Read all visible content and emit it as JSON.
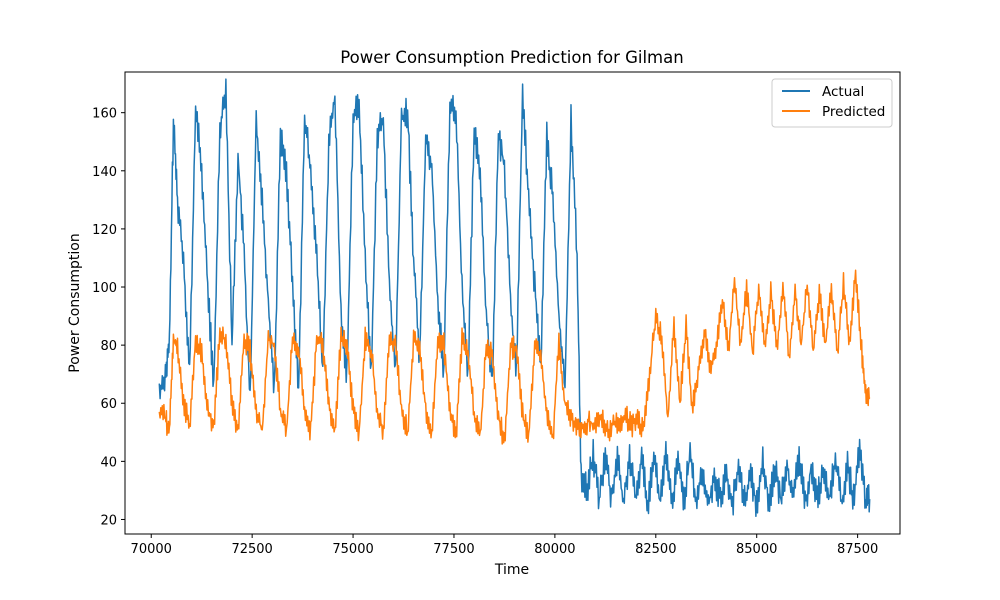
{
  "chart_data": {
    "type": "line",
    "title": "Power Consumption Prediction for Gilman",
    "xlabel": "Time",
    "ylabel": "Power Consumption",
    "xlim": [
      69350,
      88550
    ],
    "ylim": [
      15,
      174
    ],
    "x_ticks": [
      70000,
      72500,
      75000,
      77500,
      80000,
      82500,
      85000,
      87500
    ],
    "x_tick_labels": [
      "70000",
      "72500",
      "75000",
      "77500",
      "80000",
      "82500",
      "85000",
      "87500"
    ],
    "y_ticks": [
      20,
      40,
      60,
      80,
      100,
      120,
      140,
      160
    ],
    "y_tick_labels": [
      "20",
      "40",
      "60",
      "80",
      "100",
      "120",
      "140",
      "160"
    ],
    "grid": false,
    "legend_position": "top-right",
    "series": [
      {
        "name": "Actual",
        "color": "#1f77b4",
        "x": [
          70200,
          70350,
          70450,
          70550,
          70650,
          70800,
          70950,
          71100,
          71250,
          71400,
          71550,
          71700,
          71850,
          72000,
          72150,
          72300,
          72450,
          72600,
          72750,
          72900,
          73050,
          73200,
          73350,
          73500,
          73650,
          73800,
          73950,
          74100,
          74250,
          74400,
          74550,
          74700,
          74850,
          75000,
          75150,
          75300,
          75450,
          75600,
          75750,
          75900,
          76050,
          76200,
          76350,
          76500,
          76650,
          76800,
          76950,
          77100,
          77250,
          77400,
          77550,
          77700,
          77850,
          78000,
          78150,
          78300,
          78450,
          78600,
          78750,
          78900,
          79050,
          79200,
          79350,
          79500,
          79650,
          79800,
          79950,
          80100,
          80250,
          80400,
          80550,
          80650,
          80800,
          80950,
          81100,
          81250,
          81400,
          81550,
          81700,
          81850,
          82000,
          82150,
          82300,
          82450,
          82600,
          82750,
          82900,
          83050,
          83200,
          83350,
          83500,
          83650,
          83800,
          83950,
          84100,
          84250,
          84400,
          84550,
          84700,
          84850,
          85000,
          85150,
          85300,
          85450,
          85600,
          85750,
          85900,
          86050,
          86200,
          86350,
          86500,
          86650,
          86800,
          86950,
          87100,
          87250,
          87400,
          87550,
          87700,
          87800
        ],
        "y": [
          64,
          70,
          80,
          157,
          130,
          110,
          70,
          162,
          140,
          100,
          65,
          155,
          169,
          80,
          145,
          112,
          60,
          158,
          130,
          95,
          65,
          152,
          140,
          100,
          65,
          158,
          141,
          110,
          70,
          150,
          165,
          90,
          70,
          158,
          163,
          110,
          70,
          152,
          158,
          100,
          70,
          158,
          160,
          110,
          75,
          152,
          142,
          95,
          70,
          163,
          160,
          100,
          70,
          153,
          140,
          90,
          68,
          152,
          142,
          96,
          70,
          167,
          130,
          100,
          72,
          152,
          130,
          90,
          65,
          158,
          110,
          35,
          30,
          42,
          27,
          42,
          27,
          42,
          25,
          42,
          26,
          42,
          25,
          43,
          26,
          42,
          25,
          40,
          27,
          42,
          26,
          36,
          25,
          35,
          27,
          36,
          25,
          38,
          27,
          35,
          25,
          40,
          26,
          37,
          27,
          40,
          26,
          42,
          25,
          38,
          27,
          37,
          26,
          42,
          25,
          38,
          27,
          44,
          26,
          27
        ],
        "spread": 16
      },
      {
        "name": "Predicted",
        "color": "#ff7f0e",
        "x": [
          70200,
          70350,
          70450,
          70550,
          70650,
          70800,
          70950,
          71100,
          71250,
          71400,
          71550,
          71700,
          71850,
          72000,
          72150,
          72300,
          72450,
          72600,
          72750,
          72900,
          73050,
          73200,
          73350,
          73500,
          73650,
          73800,
          73950,
          74100,
          74250,
          74400,
          74550,
          74700,
          74850,
          75000,
          75150,
          75300,
          75450,
          75600,
          75750,
          75900,
          76050,
          76200,
          76350,
          76500,
          76650,
          76800,
          76950,
          77100,
          77250,
          77400,
          77550,
          77700,
          77850,
          78000,
          78150,
          78300,
          78450,
          78600,
          78750,
          78900,
          79050,
          79200,
          79350,
          79500,
          79650,
          79800,
          79950,
          80100,
          80250,
          80400,
          80550,
          80700,
          80850,
          81000,
          81150,
          81300,
          81450,
          81600,
          81750,
          81900,
          82050,
          82200,
          82350,
          82500,
          82650,
          82800,
          82950,
          83100,
          83250,
          83400,
          83550,
          83700,
          83850,
          84000,
          84150,
          84300,
          84450,
          84600,
          84750,
          84900,
          85050,
          85200,
          85350,
          85500,
          85650,
          85800,
          85950,
          86100,
          86250,
          86400,
          86550,
          86700,
          86850,
          87000,
          87150,
          87300,
          87450,
          87600,
          87700,
          87800
        ],
        "y": [
          57,
          55,
          50,
          82,
          80,
          60,
          52,
          82,
          78,
          58,
          52,
          84,
          82,
          60,
          50,
          82,
          78,
          58,
          50,
          82,
          80,
          58,
          50,
          82,
          78,
          58,
          50,
          82,
          80,
          60,
          50,
          83,
          80,
          58,
          50,
          82,
          78,
          58,
          50,
          82,
          80,
          58,
          50,
          82,
          78,
          58,
          50,
          82,
          80,
          58,
          48,
          82,
          78,
          56,
          48,
          80,
          76,
          56,
          46,
          80,
          78,
          56,
          48,
          80,
          76,
          56,
          48,
          80,
          60,
          55,
          52,
          52,
          54,
          52,
          55,
          50,
          53,
          52,
          56,
          52,
          55,
          50,
          70,
          90,
          82,
          55,
          86,
          60,
          87,
          57,
          70,
          85,
          72,
          80,
          95,
          78,
          102,
          80,
          100,
          77,
          100,
          80,
          98,
          78,
          100,
          76,
          98,
          80,
          100,
          78,
          98,
          80,
          100,
          76,
          102,
          80,
          105,
          78,
          64,
          62
        ],
        "spread": 12
      }
    ]
  }
}
